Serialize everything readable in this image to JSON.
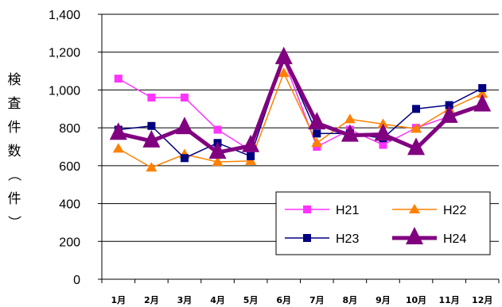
{
  "chart_data": {
    "type": "line",
    "title": "",
    "xlabel": "",
    "ylabel": "検査件数（件）",
    "categories": [
      "1月",
      "2月",
      "3月",
      "4月",
      "5月",
      "6月",
      "7月",
      "8月",
      "9月",
      "10月",
      "11月",
      "12月"
    ],
    "ylim": [
      0,
      1400
    ],
    "yticks": [
      "0",
      "200",
      "400",
      "600",
      "800",
      "1,000",
      "1,200",
      "1,400"
    ],
    "grid": true,
    "legend_position": "lower-right",
    "series": [
      {
        "name": "H21",
        "color": "#ff33ff",
        "marker": "square",
        "values": [
          1060,
          960,
          960,
          790,
          680,
          1160,
          700,
          790,
          710,
          800,
          860,
          920
        ]
      },
      {
        "name": "H22",
        "color": "#ff8000",
        "marker": "triangle",
        "values": [
          690,
          590,
          660,
          620,
          625,
          1090,
          720,
          845,
          820,
          795,
          900,
          980
        ]
      },
      {
        "name": "H23",
        "color": "#000080",
        "marker": "square",
        "values": [
          790,
          810,
          640,
          720,
          650,
          1170,
          770,
          770,
          745,
          900,
          920,
          1010
        ]
      },
      {
        "name": "H24",
        "color": "#800080",
        "marker": "triangle-large",
        "values": [
          770,
          730,
          800,
          670,
          705,
          1170,
          825,
          760,
          765,
          690,
          860,
          920
        ]
      }
    ]
  }
}
